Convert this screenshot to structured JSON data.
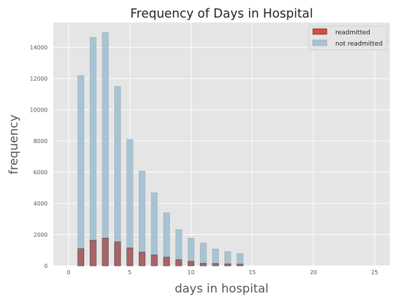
{
  "chart_data": {
    "type": "bar",
    "title": "Frequency of Days in Hospital",
    "xlabel": "days in hospital",
    "ylabel": "frequency",
    "xlim": [
      -1.25,
      26.25
    ],
    "ylim": [
      0,
      15600
    ],
    "xticks": [
      0,
      5,
      10,
      15,
      20,
      25
    ],
    "yticks": [
      0,
      2000,
      4000,
      6000,
      8000,
      10000,
      12000,
      14000
    ],
    "grid": true,
    "legend_position": "top-right",
    "x": [
      1,
      2,
      3,
      4,
      5,
      6,
      7,
      8,
      9,
      10,
      11,
      12,
      13,
      14
    ],
    "series": [
      {
        "name": "not readmitted",
        "color": "#a8c4d3",
        "values": [
          12200,
          14650,
          14950,
          11500,
          8100,
          6070,
          4680,
          3400,
          2320,
          1780,
          1460,
          1080,
          910,
          790
        ]
      },
      {
        "name": "readmitted",
        "color": "#e24a33",
        "values": [
          1100,
          1640,
          1780,
          1540,
          1150,
          880,
          700,
          560,
          400,
          290,
          160,
          150,
          130,
          110
        ]
      }
    ]
  }
}
